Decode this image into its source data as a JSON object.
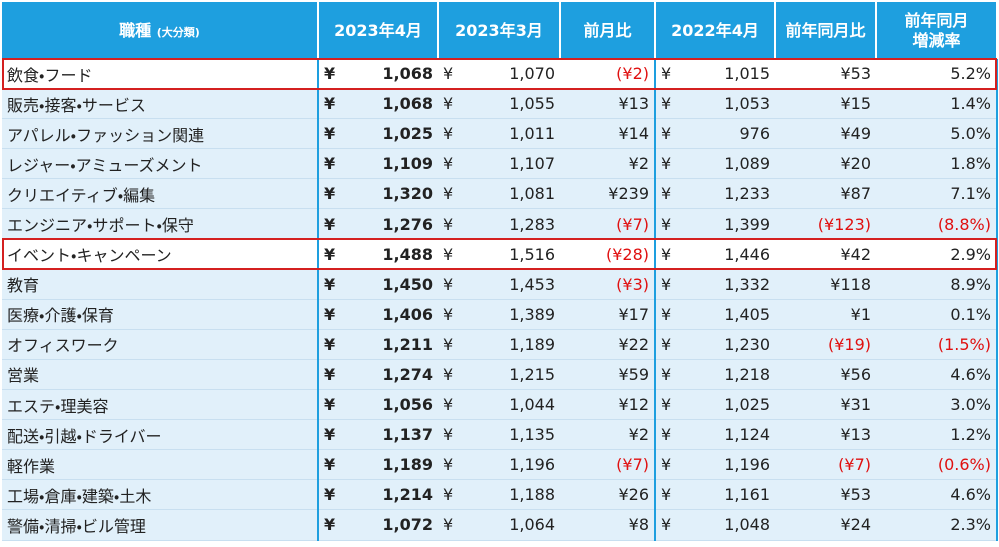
{
  "table": {
    "header": {
      "category": "職種",
      "category_note": "(大分類)",
      "columns": [
        "2023年4月",
        "2023年3月",
        "前月比",
        "2022年4月",
        "前年同月比"
      ],
      "last_column": [
        "前年同月",
        "増減率"
      ]
    },
    "currency_symbol": "¥",
    "highlighted_rows": [
      0,
      6
    ],
    "rows": [
      [
        "飲食・フード",
        "1,068",
        "1,070",
        "(¥2)",
        "1,015",
        "¥53",
        "5.2%"
      ],
      [
        "販売・接客・サービス",
        "1,068",
        "1,055",
        "¥13",
        "1,053",
        "¥15",
        "1.4%"
      ],
      [
        "アパレル・ファッション関連",
        "1,025",
        "1,011",
        "¥14",
        "976",
        "¥49",
        "5.0%"
      ],
      [
        "レジャー・アミューズメント",
        "1,109",
        "1,107",
        "¥2",
        "1,089",
        "¥20",
        "1.8%"
      ],
      [
        "クリエイティブ・編集",
        "1,320",
        "1,081",
        "¥239",
        "1,233",
        "¥87",
        "7.1%"
      ],
      [
        "エンジニア・サポート・保守",
        "1,276",
        "1,283",
        "(¥7)",
        "1,399",
        "(¥123)",
        "(8.8%)"
      ],
      [
        "イベント・キャンペーン",
        "1,488",
        "1,516",
        "(¥28)",
        "1,446",
        "¥42",
        "2.9%"
      ],
      [
        "教育",
        "1,450",
        "1,453",
        "(¥3)",
        "1,332",
        "¥118",
        "8.9%"
      ],
      [
        "医療・介護・保育",
        "1,406",
        "1,389",
        "¥17",
        "1,405",
        "¥1",
        "0.1%"
      ],
      [
        "オフィスワーク",
        "1,211",
        "1,189",
        "¥22",
        "1,230",
        "(¥19)",
        "(1.5%)"
      ],
      [
        "営業",
        "1,274",
        "1,215",
        "¥59",
        "1,218",
        "¥56",
        "4.6%"
      ],
      [
        "エステ・理美容",
        "1,056",
        "1,044",
        "¥12",
        "1,025",
        "¥31",
        "3.0%"
      ],
      [
        "配送・引越・ドライバー",
        "1,137",
        "1,135",
        "¥2",
        "1,124",
        "¥13",
        "1.2%"
      ],
      [
        "軽作業",
        "1,189",
        "1,196",
        "(¥7)",
        "1,196",
        "(¥7)",
        "(0.6%)"
      ],
      [
        "工場・倉庫・建築・土木",
        "1,214",
        "1,188",
        "¥26",
        "1,161",
        "¥53",
        "4.6%"
      ],
      [
        "警備・清掃・ビル管理",
        "1,072",
        "1,064",
        "¥8",
        "1,048",
        "¥24",
        "2.3%"
      ]
    ]
  }
}
